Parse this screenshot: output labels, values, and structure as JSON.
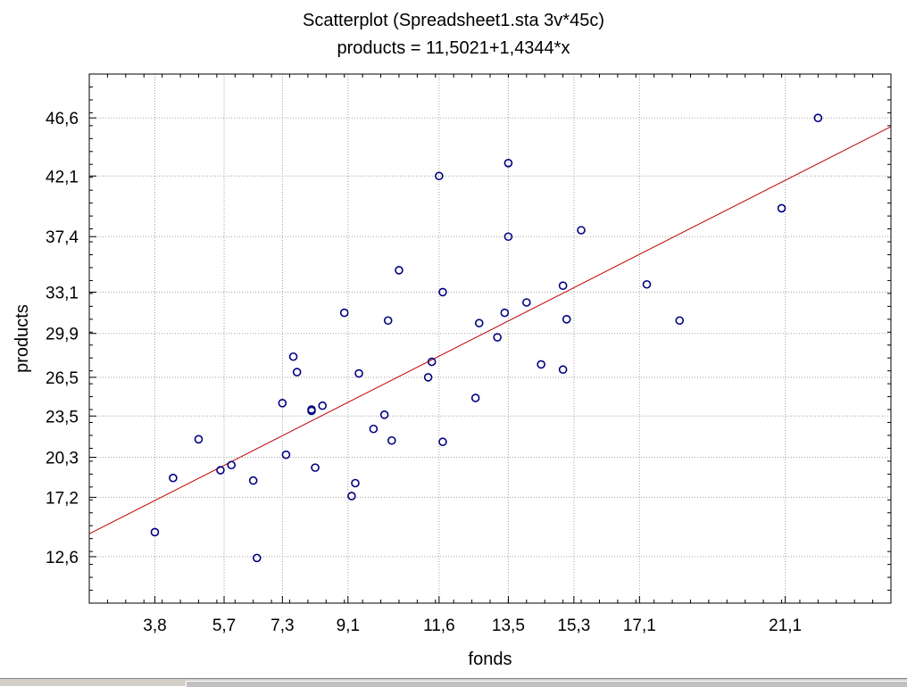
{
  "chart_data": {
    "type": "scatter",
    "title": "Scatterplot (Spreadsheet1.sta 3v*45c)",
    "subtitle": "products = 11,5021+1,4344*x",
    "xlabel": "fonds",
    "ylabel": "products",
    "xlim": [
      2.0,
      24.0
    ],
    "ylim": [
      9.0,
      50.0
    ],
    "x_ticks": [
      3.8,
      5.7,
      7.3,
      9.1,
      11.6,
      13.5,
      15.3,
      17.1,
      21.1
    ],
    "x_tick_labels": [
      "3,8",
      "5,7",
      "7,3",
      "9,1",
      "11,6",
      "13,5",
      "15,3",
      "17,1",
      "21,1"
    ],
    "y_ticks": [
      12.6,
      17.2,
      20.3,
      23.5,
      26.5,
      29.9,
      33.1,
      37.4,
      42.1,
      46.6
    ],
    "y_tick_labels": [
      "12,6",
      "17,2",
      "20,3",
      "23,5",
      "26,5",
      "29,9",
      "33,1",
      "37,4",
      "42,1",
      "46,6"
    ],
    "grid": true,
    "regression": {
      "intercept": 11.5021,
      "slope": 1.4344
    },
    "marker_color": "#000080",
    "line_color": "#c00000",
    "points": [
      [
        3.8,
        14.5
      ],
      [
        4.3,
        18.7
      ],
      [
        5.0,
        21.7
      ],
      [
        5.6,
        19.3
      ],
      [
        5.9,
        19.7
      ],
      [
        6.5,
        18.5
      ],
      [
        6.6,
        12.5
      ],
      [
        7.3,
        24.5
      ],
      [
        7.4,
        20.5
      ],
      [
        7.6,
        28.1
      ],
      [
        7.7,
        26.9
      ],
      [
        8.1,
        24.0
      ],
      [
        8.1,
        23.9
      ],
      [
        8.2,
        19.5
      ],
      [
        8.4,
        24.3
      ],
      [
        9.0,
        31.5
      ],
      [
        9.2,
        17.3
      ],
      [
        9.3,
        18.3
      ],
      [
        9.4,
        26.8
      ],
      [
        9.8,
        22.5
      ],
      [
        10.1,
        23.6
      ],
      [
        10.2,
        30.9
      ],
      [
        10.3,
        21.6
      ],
      [
        10.5,
        34.8
      ],
      [
        11.3,
        26.5
      ],
      [
        11.4,
        27.7
      ],
      [
        11.6,
        42.1
      ],
      [
        11.7,
        21.5
      ],
      [
        11.7,
        33.1
      ],
      [
        12.6,
        24.9
      ],
      [
        12.7,
        30.7
      ],
      [
        13.2,
        29.6
      ],
      [
        13.4,
        31.5
      ],
      [
        13.5,
        43.1
      ],
      [
        13.5,
        37.4
      ],
      [
        14.0,
        32.3
      ],
      [
        14.4,
        27.5
      ],
      [
        15.0,
        33.6
      ],
      [
        15.0,
        27.1
      ],
      [
        15.1,
        31.0
      ],
      [
        15.5,
        37.9
      ],
      [
        17.3,
        33.7
      ],
      [
        18.2,
        30.9
      ],
      [
        21.0,
        39.6
      ],
      [
        22.0,
        46.6
      ]
    ]
  }
}
